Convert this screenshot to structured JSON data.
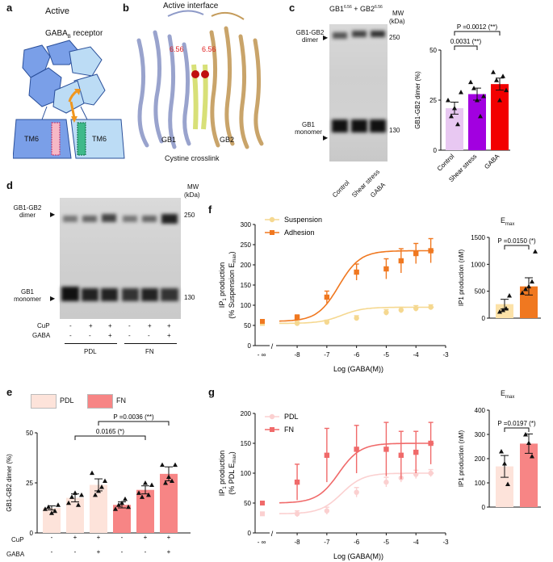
{
  "panel_labels": [
    "a",
    "b",
    "c",
    "d",
    "e",
    "f",
    "g"
  ],
  "panel_a": {
    "title": "Active",
    "receptor_prefix": "GABA",
    "receptor_sub": "B",
    "receptor_suffix": " receptor",
    "tm_left": "TM6",
    "tm_right": "TM6"
  },
  "panel_b": {
    "title": "Active interface",
    "res_left": "6.56",
    "res_right": "6.56",
    "label_gb1": "GB1",
    "label_gb2": "GB2",
    "caption": "Cystine crosslink"
  },
  "panel_c": {
    "header_gb1": "GB1",
    "header_gb1_sup": "6.56",
    "header_plus": " + ",
    "header_gb2": "GB2",
    "header_gb2_sup": "6.56",
    "mw_label": "MW",
    "mw_unit": "(kDa)",
    "mw_250": "250",
    "mw_130": "130",
    "dimer_label_1": "GB1-GB2",
    "dimer_label_2": "dimer",
    "monomer_label_1": "GB1",
    "monomer_label_2": "monomer",
    "lanes": [
      "Control",
      "Shear stress",
      "GABA"
    ]
  },
  "panel_d": {
    "mw_label": "MW",
    "mw_unit": "(kDa)",
    "mw_250": "250",
    "mw_130": "130",
    "dimer_label_1": "GB1-GB2",
    "dimer_label_2": "dimer",
    "monomer_label_1": "GB1",
    "monomer_label_2": "monomer",
    "row_cup": "CuP",
    "row_gaba": "GABA",
    "cup_signs": [
      "-",
      "+",
      "+",
      "-",
      "+",
      "+"
    ],
    "gaba_signs": [
      "-",
      "-",
      "+",
      "-",
      "-",
      "+"
    ],
    "group_pdl": "PDL",
    "group_fn": "FN"
  },
  "panel_e_legend": {
    "pdl": "PDL",
    "fn": "FN"
  },
  "panel_e_rows": {
    "cup": "CuP",
    "gaba": "GABA"
  },
  "panel_f_emax": {
    "title": "E",
    "title_sub": "max"
  },
  "panel_g_emax": {
    "title": "E",
    "title_sub": "max"
  },
  "chart_data": [
    {
      "id": "c",
      "type": "bar",
      "title": "",
      "categories": [
        "Control",
        "Shear stress",
        "GABA"
      ],
      "values": [
        21,
        28,
        33
      ],
      "errors": [
        3,
        3,
        3
      ],
      "ylabel": "GB1-GB2 dimer (%)",
      "ylim": [
        0,
        50
      ],
      "yticks": [
        0,
        25,
        50
      ],
      "colors": [
        "#e8c8f2",
        "#a200e0",
        "#f20000"
      ],
      "points": [
        [
          25,
          17,
          21,
          13,
          29
        ],
        [
          34,
          31,
          25,
          17,
          27
        ],
        [
          39,
          35,
          25,
          37,
          30
        ]
      ],
      "annotations": [
        {
          "text": "0.0031 (**)",
          "from": 0,
          "to": 1
        },
        {
          "text": "P =0.0012 (**)",
          "from": 0,
          "to": 2
        }
      ]
    },
    {
      "id": "e",
      "type": "bar",
      "title": "",
      "categories": [
        "PDL",
        "PDL CuP",
        "PDL CuP GABA",
        "FN",
        "FN CuP",
        "FN CuP GABA"
      ],
      "cup": [
        "-",
        "+",
        "+",
        "-",
        "+",
        "+"
      ],
      "gaba": [
        "-",
        "-",
        "+",
        "-",
        "-",
        "+"
      ],
      "values": [
        12.5,
        17.5,
        24,
        14,
        21.5,
        29.5
      ],
      "errors": [
        1,
        2,
        3,
        1.5,
        2,
        3.5
      ],
      "ylabel": "GB1-GB2 dimer (%)",
      "ylim": [
        0,
        50
      ],
      "yticks": [
        0,
        25,
        50
      ],
      "colors": [
        "#fde3da",
        "#fde3da",
        "#fde3da",
        "#f78585",
        "#f78585",
        "#f78585"
      ],
      "points": [
        [
          12,
          13,
          10,
          11,
          14
        ],
        [
          15,
          18,
          20,
          14,
          19
        ],
        [
          30,
          19,
          21,
          23,
          26
        ],
        [
          12,
          14,
          15,
          17,
          13
        ],
        [
          20,
          18,
          25,
          19,
          24
        ],
        [
          34,
          25,
          28,
          26,
          34
        ]
      ],
      "annotations": [
        {
          "text": "0.0165 (*)",
          "from": 1,
          "to": 4
        },
        {
          "text": "P =0.0036 (**)",
          "from": 2,
          "to": 5
        }
      ]
    },
    {
      "id": "f",
      "type": "line",
      "title": "",
      "xlabel": "Log (GABA(M))",
      "ylabel_1": "IP",
      "ylabel_sub1": "1",
      "ylabel_2": " production",
      "ylabel_3": "(% Suspension E",
      "ylabel_sub2": "max",
      "ylabel_4": ")",
      "ylim": [
        0,
        300
      ],
      "yticks": [
        0,
        50,
        100,
        150,
        200,
        250,
        300
      ],
      "xticks": [
        "-8",
        "-7",
        "-6",
        "-5",
        "-4",
        "-3"
      ],
      "x_break_label": "- ∞",
      "series": [
        {
          "name": "Suspension",
          "color": "#f5d890",
          "x": [
            -8,
            -7,
            -6,
            -5,
            -4.5,
            -4,
            -3.5
          ],
          "y": [
            55,
            58,
            68,
            82,
            88,
            92,
            95
          ],
          "errors": [
            5,
            5,
            6,
            7,
            7,
            7,
            6
          ],
          "baseline": 55
        },
        {
          "name": "Adhesion",
          "color": "#f07820",
          "x": [
            -8,
            -7,
            -6,
            -5,
            -4.5,
            -4,
            -3.5
          ],
          "y": [
            70,
            120,
            182,
            190,
            210,
            228,
            235
          ],
          "errors": [
            6,
            15,
            20,
            25,
            30,
            25,
            30
          ],
          "baseline": 60
        }
      ]
    },
    {
      "id": "f_emax",
      "type": "bar",
      "title": "Emax",
      "categories": [
        "Suspension",
        "Adhesion"
      ],
      "values": [
        260,
        590
      ],
      "errors": [
        90,
        160
      ],
      "ylabel": "IP1 production (nM)",
      "ylim": [
        0,
        1500
      ],
      "yticks": [
        0,
        500,
        1000,
        1500
      ],
      "colors": [
        "#fce2a8",
        "#f07820"
      ],
      "points": [
        [
          120,
          150,
          180,
          420
        ],
        [
          470,
          540,
          590,
          680,
          1240
        ]
      ],
      "annotations": [
        {
          "text": "P =0.0150 (*)",
          "from": 0,
          "to": 1
        }
      ]
    },
    {
      "id": "g",
      "type": "line",
      "title": "",
      "xlabel": "Log (GABA(M))",
      "ylabel_1": "IP",
      "ylabel_sub1": "1",
      "ylabel_2": " production",
      "ylabel_3": "(% PDL E",
      "ylabel_sub2": "max",
      "ylabel_4": ")",
      "ylim": [
        0,
        200
      ],
      "yticks": [
        0,
        50,
        100,
        150,
        200
      ],
      "xticks": [
        "-8",
        "-7",
        "-6",
        "-5",
        "-4",
        "-3"
      ],
      "x_break_label": "- ∞",
      "series": [
        {
          "name": "PDL",
          "color": "#fbd0d0",
          "x": [
            -8,
            -7,
            -6,
            -5,
            -4.5,
            -4,
            -3.5
          ],
          "y": [
            32,
            37,
            68,
            85,
            92,
            98,
            100
          ],
          "errors": [
            5,
            6,
            8,
            8,
            7,
            7,
            6
          ],
          "baseline": 32
        },
        {
          "name": "FN",
          "color": "#f06a6a",
          "x": [
            -8,
            -7,
            -6,
            -5,
            -4.5,
            -4,
            -3.5
          ],
          "y": [
            85,
            130,
            140,
            140,
            130,
            135,
            150
          ],
          "errors": [
            30,
            45,
            40,
            45,
            40,
            35,
            35
          ],
          "baseline": 50
        }
      ]
    },
    {
      "id": "g_emax",
      "type": "bar",
      "title": "Emax",
      "categories": [
        "PDL",
        "FN"
      ],
      "values": [
        168,
        262
      ],
      "errors": [
        45,
        40
      ],
      "ylabel": "IP1 production (nM)",
      "ylim": [
        0,
        400
      ],
      "yticks": [
        0,
        100,
        200,
        300,
        400
      ],
      "colors": [
        "#fde3da",
        "#f78585"
      ],
      "points": [
        [
          230,
          180,
          95
        ],
        [
          300,
          265,
          210
        ]
      ],
      "annotations": [
        {
          "text": "P =0.0197 (*)",
          "from": 0,
          "to": 1
        }
      ]
    }
  ]
}
